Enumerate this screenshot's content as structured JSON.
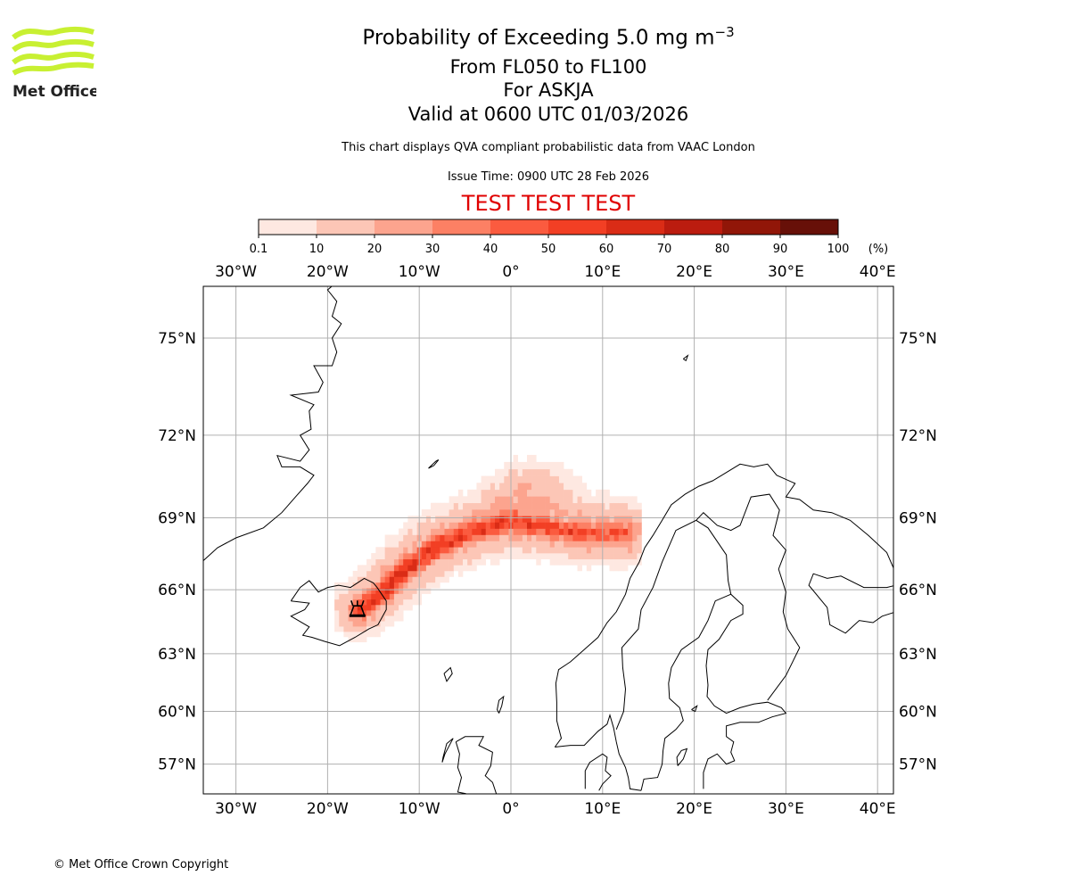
{
  "logo": {
    "text": "Met Office",
    "color": "#c8f032"
  },
  "header": {
    "title": "Probability of Exceeding 5.0 mg m",
    "title_sup": "−3",
    "levels": "From FL050 to FL100",
    "volcano": "For ASKJA",
    "valid": "Valid at 0600 UTC 01/03/2026",
    "note": "This chart displays QVA compliant probabilistic data from VAAC London",
    "issue": "Issue Time: 0900 UTC 28 Feb 2026",
    "test_banner": "TEST TEST TEST"
  },
  "colorbar": {
    "ticks": [
      "0.1",
      "10",
      "20",
      "30",
      "40",
      "50",
      "60",
      "70",
      "80",
      "90",
      "100"
    ],
    "unit": "(%)",
    "colors": [
      "#fee8e1",
      "#fcc6b6",
      "#fca48e",
      "#fc8064",
      "#fb5b3f",
      "#f23f24",
      "#da2c16",
      "#bb1c0f",
      "#911608",
      "#671008"
    ]
  },
  "map": {
    "lon_ticks": [
      {
        "lon": -30,
        "label": "30°W"
      },
      {
        "lon": -20,
        "label": "20°W"
      },
      {
        "lon": -10,
        "label": "10°W"
      },
      {
        "lon": 0,
        "label": "0°"
      },
      {
        "lon": 10,
        "label": "10°E"
      },
      {
        "lon": 20,
        "label": "20°E"
      },
      {
        "lon": 30,
        "label": "30°E"
      },
      {
        "lon": 40,
        "label": "40°E"
      }
    ],
    "lat_ticks": [
      {
        "lat": 75,
        "label": "75°N"
      },
      {
        "lat": 72,
        "label": "72°N"
      },
      {
        "lat": 69,
        "label": "69°N"
      },
      {
        "lat": 66,
        "label": "66°N"
      },
      {
        "lat": 63,
        "label": "63°N"
      },
      {
        "lat": 60,
        "label": "60°N"
      },
      {
        "lat": 57,
        "label": "57°N"
      }
    ],
    "volcano": {
      "name": "ASKJA",
      "lon": -16.75,
      "lat": 65.03
    },
    "plume_axis": [
      [
        -16.5,
        65.1
      ],
      [
        -14,
        65.9
      ],
      [
        -11.5,
        66.9
      ],
      [
        -8,
        67.9
      ],
      [
        -4,
        68.5
      ],
      [
        0,
        68.9
      ],
      [
        4,
        68.6
      ],
      [
        8,
        68.4
      ],
      [
        12.5,
        68.4
      ]
    ],
    "plume_peak_pct": [
      62,
      62,
      62,
      60,
      58,
      56,
      52,
      50,
      45
    ]
  },
  "footer": {
    "copyright": "© Met Office Crown Copyright"
  }
}
